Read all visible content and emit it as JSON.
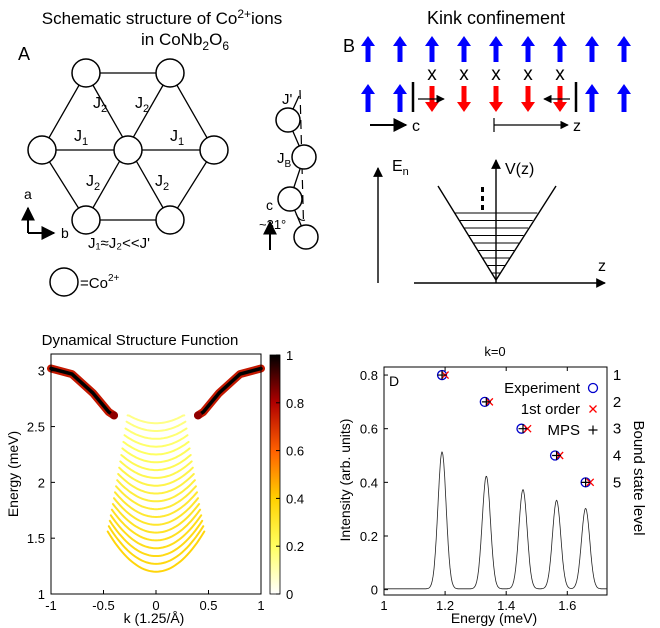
{
  "panelA": {
    "label": "A",
    "title_line1": "Schematic structure of Co",
    "title_sup": "2+",
    "title_after": "ions",
    "title_line2_pre": "in CoNb",
    "title_sub1": "2",
    "title_mid": "O",
    "title_sub2": "6",
    "couplings": {
      "J1": "J",
      "J1_sub": "1",
      "J2": "J",
      "J2_sub": "2",
      "Jp": "J'",
      "JB": "J",
      "JB_sub": "B"
    },
    "axes": {
      "a": "a",
      "b": "b",
      "c": "c"
    },
    "angle": "~31°",
    "relation": "J₁≈J₂<<J'",
    "legend_text": "=Co",
    "legend_sup": "2+"
  },
  "panelB": {
    "label": "B",
    "title": "Kink confinement",
    "x_mark": "x",
    "c_label": "c",
    "z_label": "z",
    "En_label": "E",
    "En_sub": "n",
    "Vz_label": "V(z)",
    "z_axis": "z",
    "colors": {
      "up": "#0000ff",
      "down": "#ff0000"
    }
  },
  "panelC": {
    "title": "Dynamical Structure Function",
    "xlabel": "k (1.25/Å)",
    "ylabel": "Energy (meV)",
    "xticks": [
      "-1",
      "-0.5",
      "0",
      "0.5",
      "1"
    ],
    "yticks": [
      "1",
      "1.5",
      "2",
      "2.5",
      "3"
    ],
    "cbar_ticks": [
      "0",
      "0.2",
      "0.4",
      "0.6",
      "0.8",
      "1"
    ]
  },
  "panelD": {
    "label": "D",
    "title": "k=0",
    "xlabel": "Energy (meV)",
    "ylabel": "Intensity (arb. units)",
    "right_label": "Bound state level",
    "xticks": [
      "1",
      "1.2",
      "1.4",
      "1.6"
    ],
    "yticks": [
      "0",
      "0.2",
      "0.4",
      "0.6",
      "0.8"
    ],
    "levels": [
      "1",
      "2",
      "3",
      "4",
      "5"
    ],
    "legend": [
      {
        "label": "Experiment",
        "marker": "o",
        "color": "#0000cc"
      },
      {
        "label": "1st order",
        "marker": "x",
        "color": "#ff0000"
      },
      {
        "label": "MPS",
        "marker": "+",
        "color": "#000000"
      }
    ]
  },
  "chart_data": [
    {
      "type": "heatmap",
      "title": "Dynamical Structure Function",
      "xlabel": "k (1.25/Å)",
      "ylabel": "Energy (meV)",
      "xlim": [
        -1,
        1
      ],
      "ylim": [
        1,
        3.15
      ],
      "colorbar": [
        0,
        1
      ],
      "top_branch": {
        "k": [
          -1,
          -0.8,
          -0.6,
          -0.45,
          -0.4,
          0.4,
          0.45,
          0.6,
          0.8,
          1
        ],
        "E": [
          3.02,
          2.97,
          2.8,
          2.63,
          2.6,
          2.6,
          2.63,
          2.8,
          2.97,
          3.02
        ]
      },
      "continuum_minimum_at_k0": 1.2
    },
    {
      "type": "line",
      "title": "k=0",
      "xlabel": "Energy (meV)",
      "ylabel": "Intensity (arb. units)",
      "xlim": [
        1,
        1.73
      ],
      "ylim": [
        -0.02,
        0.83
      ],
      "peaks": [
        {
          "E": 1.19,
          "I": 0.51
        },
        {
          "E": 1.335,
          "I": 0.42
        },
        {
          "E": 1.455,
          "I": 0.37
        },
        {
          "E": 1.565,
          "I": 0.33
        },
        {
          "E": 1.66,
          "I": 0.3
        }
      ],
      "series": [
        {
          "name": "Experiment",
          "x": [
            1.19,
            1.33,
            1.45,
            1.56,
            1.66
          ],
          "y": [
            0.8,
            0.7,
            0.6,
            0.5,
            0.4
          ]
        },
        {
          "name": "1st order",
          "x": [
            1.2,
            1.345,
            1.47,
            1.575,
            1.675
          ],
          "y": [
            0.8,
            0.7,
            0.6,
            0.5,
            0.4
          ]
        },
        {
          "name": "MPS",
          "x": [
            1.19,
            1.335,
            1.455,
            1.565,
            1.66
          ],
          "y": [
            0.8,
            0.7,
            0.6,
            0.5,
            0.4
          ]
        }
      ]
    }
  ]
}
